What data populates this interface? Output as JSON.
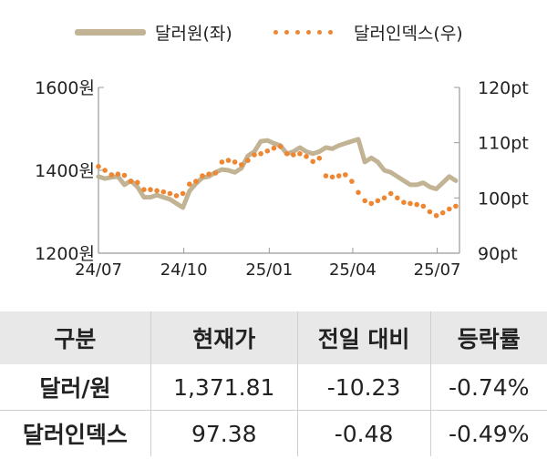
{
  "chart_data": {
    "type": "line",
    "legend": [
      {
        "name": "달러원(좌)",
        "color": "#c1b393",
        "style": "solid"
      },
      {
        "name": "달러인덱스(우)",
        "color": "#ee8632",
        "style": "dotted"
      }
    ],
    "x_ticks": [
      "24/07",
      "24/10",
      "25/01",
      "25/04",
      "25/07"
    ],
    "y_left": {
      "ticks": [
        "1600원",
        "1400원",
        "1200원"
      ],
      "range": [
        1200,
        1600
      ]
    },
    "y_right": {
      "ticks": [
        "120pt",
        "110pt",
        "100pt",
        "90pt"
      ],
      "range": [
        90,
        120
      ]
    },
    "series": [
      {
        "name": "달러원(좌)",
        "axis": "left",
        "points": [
          [
            "2024-07-01",
            1385
          ],
          [
            "2024-07-08",
            1380
          ],
          [
            "2024-07-15",
            1383
          ],
          [
            "2024-07-22",
            1385
          ],
          [
            "2024-07-29",
            1365
          ],
          [
            "2024-08-05",
            1375
          ],
          [
            "2024-08-12",
            1360
          ],
          [
            "2024-08-19",
            1335
          ],
          [
            "2024-08-26",
            1335
          ],
          [
            "2024-09-02",
            1340
          ],
          [
            "2024-09-09",
            1335
          ],
          [
            "2024-09-16",
            1330
          ],
          [
            "2024-09-23",
            1320
          ],
          [
            "2024-09-30",
            1310
          ],
          [
            "2024-10-07",
            1350
          ],
          [
            "2024-10-14",
            1368
          ],
          [
            "2024-10-21",
            1382
          ],
          [
            "2024-10-28",
            1385
          ],
          [
            "2024-11-04",
            1395
          ],
          [
            "2024-11-11",
            1402
          ],
          [
            "2024-11-18",
            1400
          ],
          [
            "2024-11-25",
            1395
          ],
          [
            "2024-12-02",
            1405
          ],
          [
            "2024-12-09",
            1435
          ],
          [
            "2024-12-16",
            1445
          ],
          [
            "2024-12-23",
            1470
          ],
          [
            "2024-12-30",
            1472
          ],
          [
            "2025-01-06",
            1465
          ],
          [
            "2025-01-13",
            1460
          ],
          [
            "2025-01-20",
            1440
          ],
          [
            "2025-01-27",
            1445
          ],
          [
            "2025-02-03",
            1455
          ],
          [
            "2025-02-10",
            1445
          ],
          [
            "2025-02-17",
            1440
          ],
          [
            "2025-02-24",
            1445
          ],
          [
            "2025-03-03",
            1455
          ],
          [
            "2025-03-10",
            1452
          ],
          [
            "2025-03-17",
            1460
          ],
          [
            "2025-03-24",
            1465
          ],
          [
            "2025-03-31",
            1470
          ],
          [
            "2025-04-07",
            1475
          ],
          [
            "2025-04-14",
            1420
          ],
          [
            "2025-04-21",
            1430
          ],
          [
            "2025-04-28",
            1420
          ],
          [
            "2025-05-05",
            1400
          ],
          [
            "2025-05-12",
            1395
          ],
          [
            "2025-05-19",
            1385
          ],
          [
            "2025-05-26",
            1375
          ],
          [
            "2025-06-02",
            1365
          ],
          [
            "2025-06-09",
            1365
          ],
          [
            "2025-06-16",
            1370
          ],
          [
            "2025-06-23",
            1360
          ],
          [
            "2025-06-30",
            1355
          ],
          [
            "2025-07-07",
            1370
          ],
          [
            "2025-07-14",
            1385
          ],
          [
            "2025-07-21",
            1375
          ]
        ]
      },
      {
        "name": "달러인덱스(우)",
        "axis": "right",
        "points": [
          [
            "2024-07-01",
            105.7
          ],
          [
            "2024-07-08",
            105.0
          ],
          [
            "2024-07-15",
            104.2
          ],
          [
            "2024-07-22",
            104.3
          ],
          [
            "2024-07-29",
            104.1
          ],
          [
            "2024-08-05",
            103.0
          ],
          [
            "2024-08-12",
            102.8
          ],
          [
            "2024-08-19",
            101.5
          ],
          [
            "2024-08-26",
            101.5
          ],
          [
            "2024-09-02",
            101.3
          ],
          [
            "2024-09-09",
            101.1
          ],
          [
            "2024-09-16",
            100.8
          ],
          [
            "2024-09-23",
            100.4
          ],
          [
            "2024-09-30",
            100.8
          ],
          [
            "2024-10-07",
            102.5
          ],
          [
            "2024-10-14",
            103.0
          ],
          [
            "2024-10-21",
            104.0
          ],
          [
            "2024-10-28",
            104.3
          ],
          [
            "2024-11-04",
            104.5
          ],
          [
            "2024-11-11",
            106.5
          ],
          [
            "2024-11-18",
            106.8
          ],
          [
            "2024-11-25",
            106.5
          ],
          [
            "2024-12-02",
            106.0
          ],
          [
            "2024-12-09",
            106.8
          ],
          [
            "2024-12-16",
            107.8
          ],
          [
            "2024-12-23",
            108.0
          ],
          [
            "2024-12-30",
            108.5
          ],
          [
            "2025-01-06",
            109.0
          ],
          [
            "2025-01-13",
            109.3
          ],
          [
            "2025-01-20",
            108.0
          ],
          [
            "2025-01-27",
            107.8
          ],
          [
            "2025-02-03",
            108.0
          ],
          [
            "2025-02-10",
            107.5
          ],
          [
            "2025-02-17",
            106.6
          ],
          [
            "2025-02-24",
            107.2
          ],
          [
            "2025-03-03",
            104.0
          ],
          [
            "2025-03-10",
            103.8
          ],
          [
            "2025-03-17",
            104.0
          ],
          [
            "2025-03-24",
            104.2
          ],
          [
            "2025-03-31",
            103.0
          ],
          [
            "2025-04-07",
            101.0
          ],
          [
            "2025-04-14",
            99.5
          ],
          [
            "2025-04-21",
            99.0
          ],
          [
            "2025-04-28",
            99.5
          ],
          [
            "2025-05-05",
            100.0
          ],
          [
            "2025-05-12",
            100.8
          ],
          [
            "2025-05-19",
            100.0
          ],
          [
            "2025-05-26",
            99.2
          ],
          [
            "2025-06-02",
            99.0
          ],
          [
            "2025-06-09",
            98.8
          ],
          [
            "2025-06-16",
            98.5
          ],
          [
            "2025-06-23",
            97.5
          ],
          [
            "2025-06-30",
            96.8
          ],
          [
            "2025-07-07",
            97.3
          ],
          [
            "2025-07-14",
            98.0
          ],
          [
            "2025-07-21",
            98.5
          ]
        ]
      }
    ]
  },
  "table": {
    "headers": [
      "구분",
      "현재가",
      "전일 대비",
      "등락률"
    ],
    "rows": [
      {
        "name": "달러/원",
        "price": "1,371.81",
        "change": "-10.23",
        "rate": "-0.74%"
      },
      {
        "name": "달러인덱스",
        "price": "97.38",
        "change": "-0.48",
        "rate": "-0.49%"
      }
    ]
  }
}
